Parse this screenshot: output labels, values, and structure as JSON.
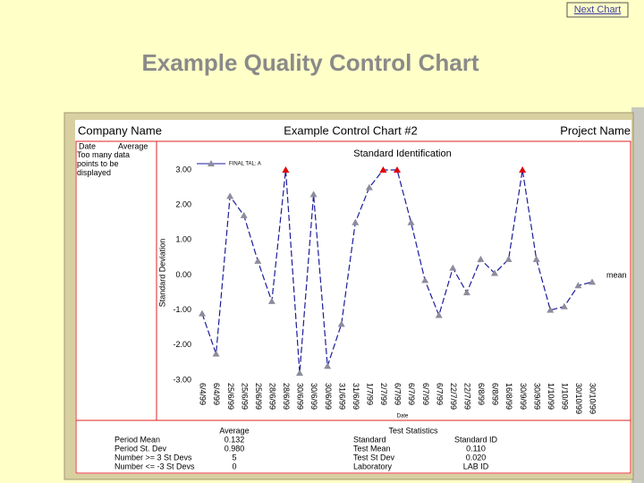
{
  "slide": {
    "title": "Example Quality Control Chart",
    "next_link": "Next Chart"
  },
  "header": {
    "left": "Company Name",
    "center": "Example Control Chart #2",
    "right": "Project Name"
  },
  "side_box": {
    "col1": "Date",
    "col2": "Average",
    "note": "Too many data points to be displayed"
  },
  "chart_data": {
    "type": "line",
    "title": "Standard Identification",
    "x_label": "Date",
    "y_label": "Standard Deviation",
    "mean_label": "mean",
    "categories": [
      "6/4/99",
      "6/4/99",
      "25/6/99",
      "25/6/99",
      "25/6/99",
      "28/6/99",
      "28/6/99",
      "30/6/99",
      "30/6/99",
      "30/6/99",
      "31/6/99",
      "31/6/99",
      "1/7/99",
      "2/7/99",
      "6/7/99",
      "6/7/99",
      "6/7/99",
      "6/7/99",
      "22/7/99",
      "22/7/99",
      "6/8/99",
      "6/8/99",
      "16/8/99",
      "30/9/99",
      "30/9/99",
      "1/10/99",
      "1/10/99",
      "30/10/99",
      "30/10/99"
    ],
    "series": [
      {
        "name": "FINAL TAL: A",
        "color": "#1c1c9c",
        "marker_color": "#8c8c9c",
        "marker_colors": [
          "#8c8c9c",
          "#8c8c9c",
          "#8c8c9c",
          "#8c8c9c",
          "#8c8c9c",
          "#8c8c9c",
          "#e00000",
          "#8c8c9c",
          "#8c8c9c",
          "#8c8c9c",
          "#8c8c9c",
          "#8c8c9c",
          "#8c8c9c",
          "#e00000",
          "#e00000",
          "#8c8c9c",
          "#8c8c9c",
          "#8c8c9c",
          "#8c8c9c",
          "#8c8c9c",
          "#8c8c9c",
          "#8c8c9c",
          "#8c8c9c",
          "#e00000",
          "#8c8c9c",
          "#8c8c9c",
          "#8c8c9c",
          "#8c8c9c",
          "#8c8c9c"
        ],
        "values": [
          -1.1,
          -2.25,
          2.25,
          1.7,
          0.4,
          -0.75,
          3.0,
          -2.8,
          2.3,
          -2.6,
          -1.4,
          1.5,
          2.5,
          3.0,
          3.0,
          1.5,
          -0.15,
          -1.15,
          0.2,
          -0.5,
          0.45,
          0.05,
          0.45,
          3.0,
          0.45,
          -1.0,
          -0.9,
          -0.3,
          -0.2
        ]
      }
    ],
    "ylim": [
      -3,
      3
    ],
    "yticks": [
      {
        "value": 3,
        "label": "3.00"
      },
      {
        "value": 2,
        "label": "2.00"
      },
      {
        "value": 1,
        "label": "1.00"
      },
      {
        "value": 0,
        "label": "0.00"
      },
      {
        "value": -1,
        "label": "-1.00"
      },
      {
        "value": -2,
        "label": "-2.00"
      },
      {
        "value": -3,
        "label": "-3.00"
      }
    ],
    "grid": false
  },
  "stats": {
    "average_header": "Average",
    "test_header": "Test Statistics",
    "rows": [
      [
        "Period Mean",
        "0.132",
        "Standard",
        "Standard ID"
      ],
      [
        "Period St. Dev",
        "0.980",
        "Test Mean",
        "0.110"
      ],
      [
        "Number >= 3 St Devs",
        "5",
        "Test St Dev",
        "0.020"
      ],
      [
        "Number <= -3 St Devs",
        "0",
        "Laboratory",
        "LAB ID"
      ]
    ]
  }
}
